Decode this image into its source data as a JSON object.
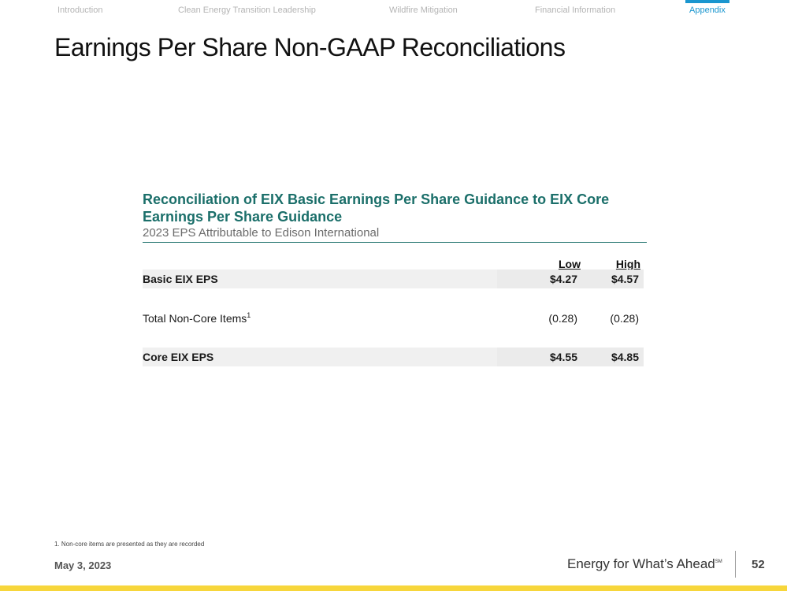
{
  "nav": {
    "items": [
      {
        "label": "Introduction"
      },
      {
        "label": "Clean Energy Transition Leadership"
      },
      {
        "label": "Wildfire Mitigation"
      },
      {
        "label": "Financial Information"
      },
      {
        "label": "Appendix"
      }
    ],
    "active_index": 4,
    "active_color": "#1a96cf"
  },
  "page_title": "Earnings Per Share Non-GAAP Reconciliations",
  "reconciliation": {
    "heading": "Reconciliation of EIX Basic Earnings Per Share Guidance to EIX Core Earnings Per Share Guidance",
    "subtitle": "2023 EPS Attributable to Edison International",
    "columns": {
      "low": "Low",
      "high": "High"
    },
    "rows": [
      {
        "label": "Basic EIX EPS",
        "low": "$4.27",
        "high": "$4.57"
      },
      {
        "label": "Total Non-Core Items",
        "footnote_mark": "1",
        "low": "(0.28)",
        "high": "(0.28)"
      },
      {
        "label": "Core EIX EPS",
        "low": "$4.55",
        "high": "$4.85"
      }
    ],
    "accent_color": "#1b6f6a"
  },
  "footnote": "1.   Non-core items are presented as they are recorded",
  "footer": {
    "date": "May 3, 2023",
    "tagline": "Energy for What’s Ahead",
    "tagline_mark": "SM",
    "page_number": "52",
    "bar_color": "#f7d63b"
  }
}
